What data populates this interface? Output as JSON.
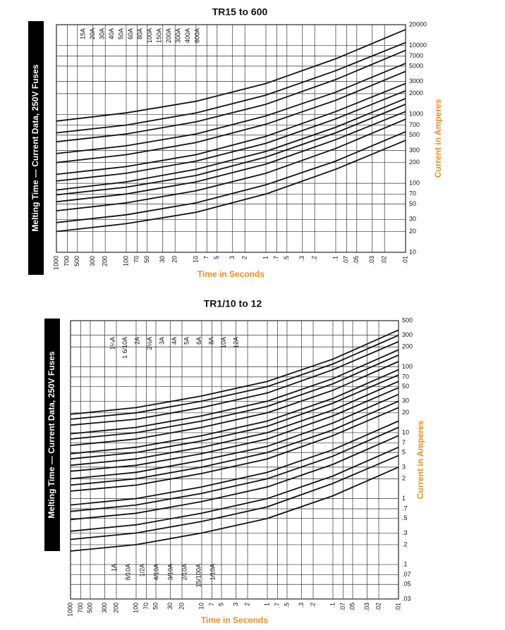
{
  "chart_data": [
    {
      "type": "line",
      "title": "TR15 to 600",
      "side_label": "Melting Time — Current Data, 250V Fuses",
      "x_label": "Time in Seconds",
      "y_label": "Current in Amperes",
      "xscale": "log",
      "yscale": "log",
      "grid": true,
      "xlim": [
        1000,
        0.01
      ],
      "ylim": [
        10,
        20000
      ],
      "xticks": [
        1000,
        700,
        500,
        300,
        200,
        100,
        70,
        50,
        30,
        20,
        10,
        7,
        5,
        3,
        2,
        1,
        {
          "value": 0.7,
          "label": ".7"
        },
        {
          "value": 0.5,
          "label": ".5"
        },
        {
          "value": 0.3,
          "label": ".3"
        },
        {
          "value": 0.2,
          "label": ".2"
        },
        {
          "value": 0.1,
          "label": ".1"
        },
        {
          "value": 0.07,
          "label": ".07"
        },
        {
          "value": 0.05,
          "label": ".05"
        },
        {
          "value": 0.03,
          "label": ".03"
        },
        {
          "value": 0.02,
          "label": ".02"
        },
        {
          "value": 0.01,
          "label": ".01"
        }
      ],
      "yticks": [
        20000,
        10000,
        7000,
        5000,
        3000,
        2000,
        1000,
        700,
        500,
        300,
        200,
        100,
        70,
        50,
        30,
        20,
        10
      ],
      "x": [
        1000,
        100,
        10,
        1,
        0.1,
        0.01
      ],
      "series": [
        {
          "name": "15A",
          "color": "#111",
          "values": [
            20,
            26,
            38,
            70,
            160,
            420
          ]
        },
        {
          "name": "20A",
          "color": "#111",
          "values": [
            27,
            35,
            52,
            95,
            210,
            560
          ]
        },
        {
          "name": "30A",
          "color": "#111",
          "values": [
            40,
            52,
            78,
            140,
            320,
            850
          ]
        },
        {
          "name": "40A",
          "color": "#111",
          "values": [
            54,
            70,
            105,
            190,
            430,
            1100
          ]
        },
        {
          "name": "50A",
          "color": "#111",
          "values": [
            68,
            88,
            130,
            240,
            540,
            1400
          ]
        },
        {
          "name": "60A",
          "color": "#111",
          "values": [
            80,
            105,
            160,
            290,
            650,
            1700
          ]
        },
        {
          "name": "80A",
          "color": "#111",
          "values": [
            108,
            140,
            210,
            380,
            860,
            2200
          ]
        },
        {
          "name": "100A",
          "color": "#111",
          "values": [
            135,
            175,
            260,
            480,
            1100,
            2800
          ]
        },
        {
          "name": "150A",
          "color": "#111",
          "values": [
            200,
            260,
            390,
            720,
            1600,
            4200
          ]
        },
        {
          "name": "200A",
          "color": "#111",
          "values": [
            270,
            350,
            520,
            950,
            2100,
            5500
          ]
        },
        {
          "name": "300A",
          "color": "#111",
          "values": [
            400,
            520,
            780,
            1400,
            3200,
            8500
          ]
        },
        {
          "name": "400A",
          "color": "#111",
          "values": [
            540,
            700,
            1050,
            1900,
            4300,
            11000
          ]
        },
        {
          "name": "600A",
          "color": "#111",
          "values": [
            800,
            1050,
            1550,
            2800,
            6400,
            17000
          ]
        }
      ]
    },
    {
      "type": "line",
      "title": "TR1/10 to 12",
      "side_label": "Melting Time — Current Data, 250V Fuses",
      "x_label": "Time in Seconds",
      "y_label": "Current in Amperes",
      "xscale": "log",
      "yscale": "log",
      "grid": true,
      "xlim": [
        1000,
        0.01
      ],
      "ylim": [
        0.03,
        500
      ],
      "xticks": [
        1000,
        700,
        500,
        300,
        200,
        100,
        70,
        50,
        30,
        20,
        10,
        7,
        5,
        3,
        2,
        1,
        {
          "value": 0.7,
          "label": ".7"
        },
        {
          "value": 0.5,
          "label": ".5"
        },
        {
          "value": 0.3,
          "label": ".3"
        },
        {
          "value": 0.2,
          "label": ".2"
        },
        {
          "value": 0.1,
          "label": ".1"
        },
        {
          "value": 0.07,
          "label": ".07"
        },
        {
          "value": 0.05,
          "label": ".05"
        },
        {
          "value": 0.03,
          "label": ".03"
        },
        {
          "value": 0.02,
          "label": ".02"
        },
        {
          "value": 0.01,
          "label": ".01"
        }
      ],
      "yticks": [
        500,
        300,
        200,
        100,
        70,
        50,
        30,
        20,
        10,
        7,
        5,
        3,
        2,
        1,
        {
          "value": 0.7,
          "label": ".7"
        },
        {
          "value": 0.5,
          "label": ".5"
        },
        {
          "value": 0.3,
          "label": ".3"
        },
        {
          "value": 0.2,
          "label": ".2"
        },
        {
          "value": 0.1,
          "label": ".1"
        },
        {
          "value": 0.07,
          "label": ".07"
        },
        {
          "value": 0.05,
          "label": ".05"
        },
        {
          "value": 0.03,
          "label": ".03"
        }
      ],
      "x": [
        1000,
        100,
        10,
        1,
        0.1,
        0.01
      ],
      "series": [
        {
          "name": "1A",
          "color": "#111",
          "values": [
            1.6,
            2,
            3,
            5,
            11,
            30
          ]
        },
        {
          "name": "8/10A",
          "color": "#111",
          "values": [
            1.3,
            1.6,
            2.4,
            4,
            9,
            24
          ]
        },
        {
          "name": "1/2A",
          "color": "#111",
          "values": [
            0.8,
            1,
            1.5,
            2.5,
            5.5,
            15
          ]
        },
        {
          "name": "4/10A",
          "color": "#111",
          "values": [
            0.64,
            0.8,
            1.2,
            2,
            4.4,
            12
          ]
        },
        {
          "name": "3/10A",
          "color": "#111",
          "values": [
            0.48,
            0.6,
            0.9,
            1.5,
            3.3,
            9
          ]
        },
        {
          "name": "2/10A",
          "color": "#111",
          "values": [
            0.32,
            0.4,
            0.6,
            1,
            2.2,
            6
          ]
        },
        {
          "name": "15/100A",
          "color": "#111",
          "values": [
            0.24,
            0.3,
            0.45,
            0.75,
            1.7,
            4.5
          ]
        },
        {
          "name": "1/10A",
          "color": "#111",
          "values": [
            0.16,
            0.2,
            0.3,
            0.5,
            1.1,
            3
          ]
        },
        {
          "name": "1¼A",
          "color": "#111",
          "values": [
            2,
            2.5,
            3.8,
            6.2,
            14,
            38
          ]
        },
        {
          "name": "1 6/10A",
          "color": "#111",
          "values": [
            2.6,
            3.2,
            4.8,
            8,
            18,
            48
          ]
        },
        {
          "name": "2A",
          "color": "#111",
          "values": [
            3.2,
            4,
            6,
            10,
            22,
            60
          ]
        },
        {
          "name": "2½A",
          "color": "#111",
          "values": [
            4,
            5,
            7.5,
            12.5,
            28,
            75
          ]
        },
        {
          "name": "3A",
          "color": "#111",
          "values": [
            4.8,
            6,
            9,
            15,
            33,
            90
          ]
        },
        {
          "name": "4A",
          "color": "#111",
          "values": [
            6.4,
            8,
            12,
            20,
            44,
            120
          ]
        },
        {
          "name": "5A",
          "color": "#111",
          "values": [
            8,
            10,
            15,
            25,
            55,
            150
          ]
        },
        {
          "name": "6A",
          "color": "#111",
          "values": [
            9.6,
            12,
            18,
            30,
            66,
            180
          ]
        },
        {
          "name": "8A",
          "color": "#111",
          "values": [
            13,
            16,
            24,
            40,
            90,
            240
          ]
        },
        {
          "name": "10A",
          "color": "#111",
          "values": [
            16,
            20,
            30,
            50,
            110,
            300
          ]
        },
        {
          "name": "12A",
          "color": "#111",
          "values": [
            19,
            24,
            36,
            60,
            130,
            360
          ]
        }
      ]
    }
  ]
}
